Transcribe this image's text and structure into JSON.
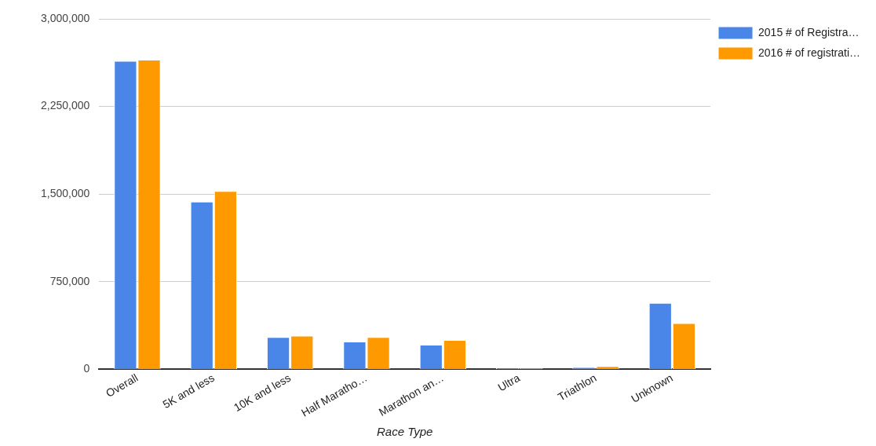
{
  "chart_data": {
    "type": "bar",
    "xlabel": "Race Type",
    "categories": [
      "Overall",
      "5K and less",
      "10K and less",
      "Half Maratho…",
      "Marathon an…",
      "Ultra",
      "Triathlon",
      "Unknown"
    ],
    "series": [
      {
        "name": "2015 # of Registra…",
        "color": "#4a86e8",
        "values": [
          2640000,
          1436000,
          277000,
          238000,
          211000,
          12000,
          20000,
          568000
        ]
      },
      {
        "name": "2016 # of registrati…",
        "color": "#ff9900",
        "values": [
          2650000,
          1527000,
          289000,
          277000,
          252000,
          12000,
          27000,
          395000
        ]
      }
    ],
    "ylim": [
      0,
      3000000
    ],
    "yticks": [
      {
        "value": 0,
        "label": "0"
      },
      {
        "value": 750000,
        "label": "750,000"
      },
      {
        "value": 1500000,
        "label": "1,500,000"
      },
      {
        "value": 2250000,
        "label": "2,250,000"
      },
      {
        "value": 3000000,
        "label": "3,000,000"
      }
    ],
    "grid": "y",
    "legend": "top right"
  }
}
